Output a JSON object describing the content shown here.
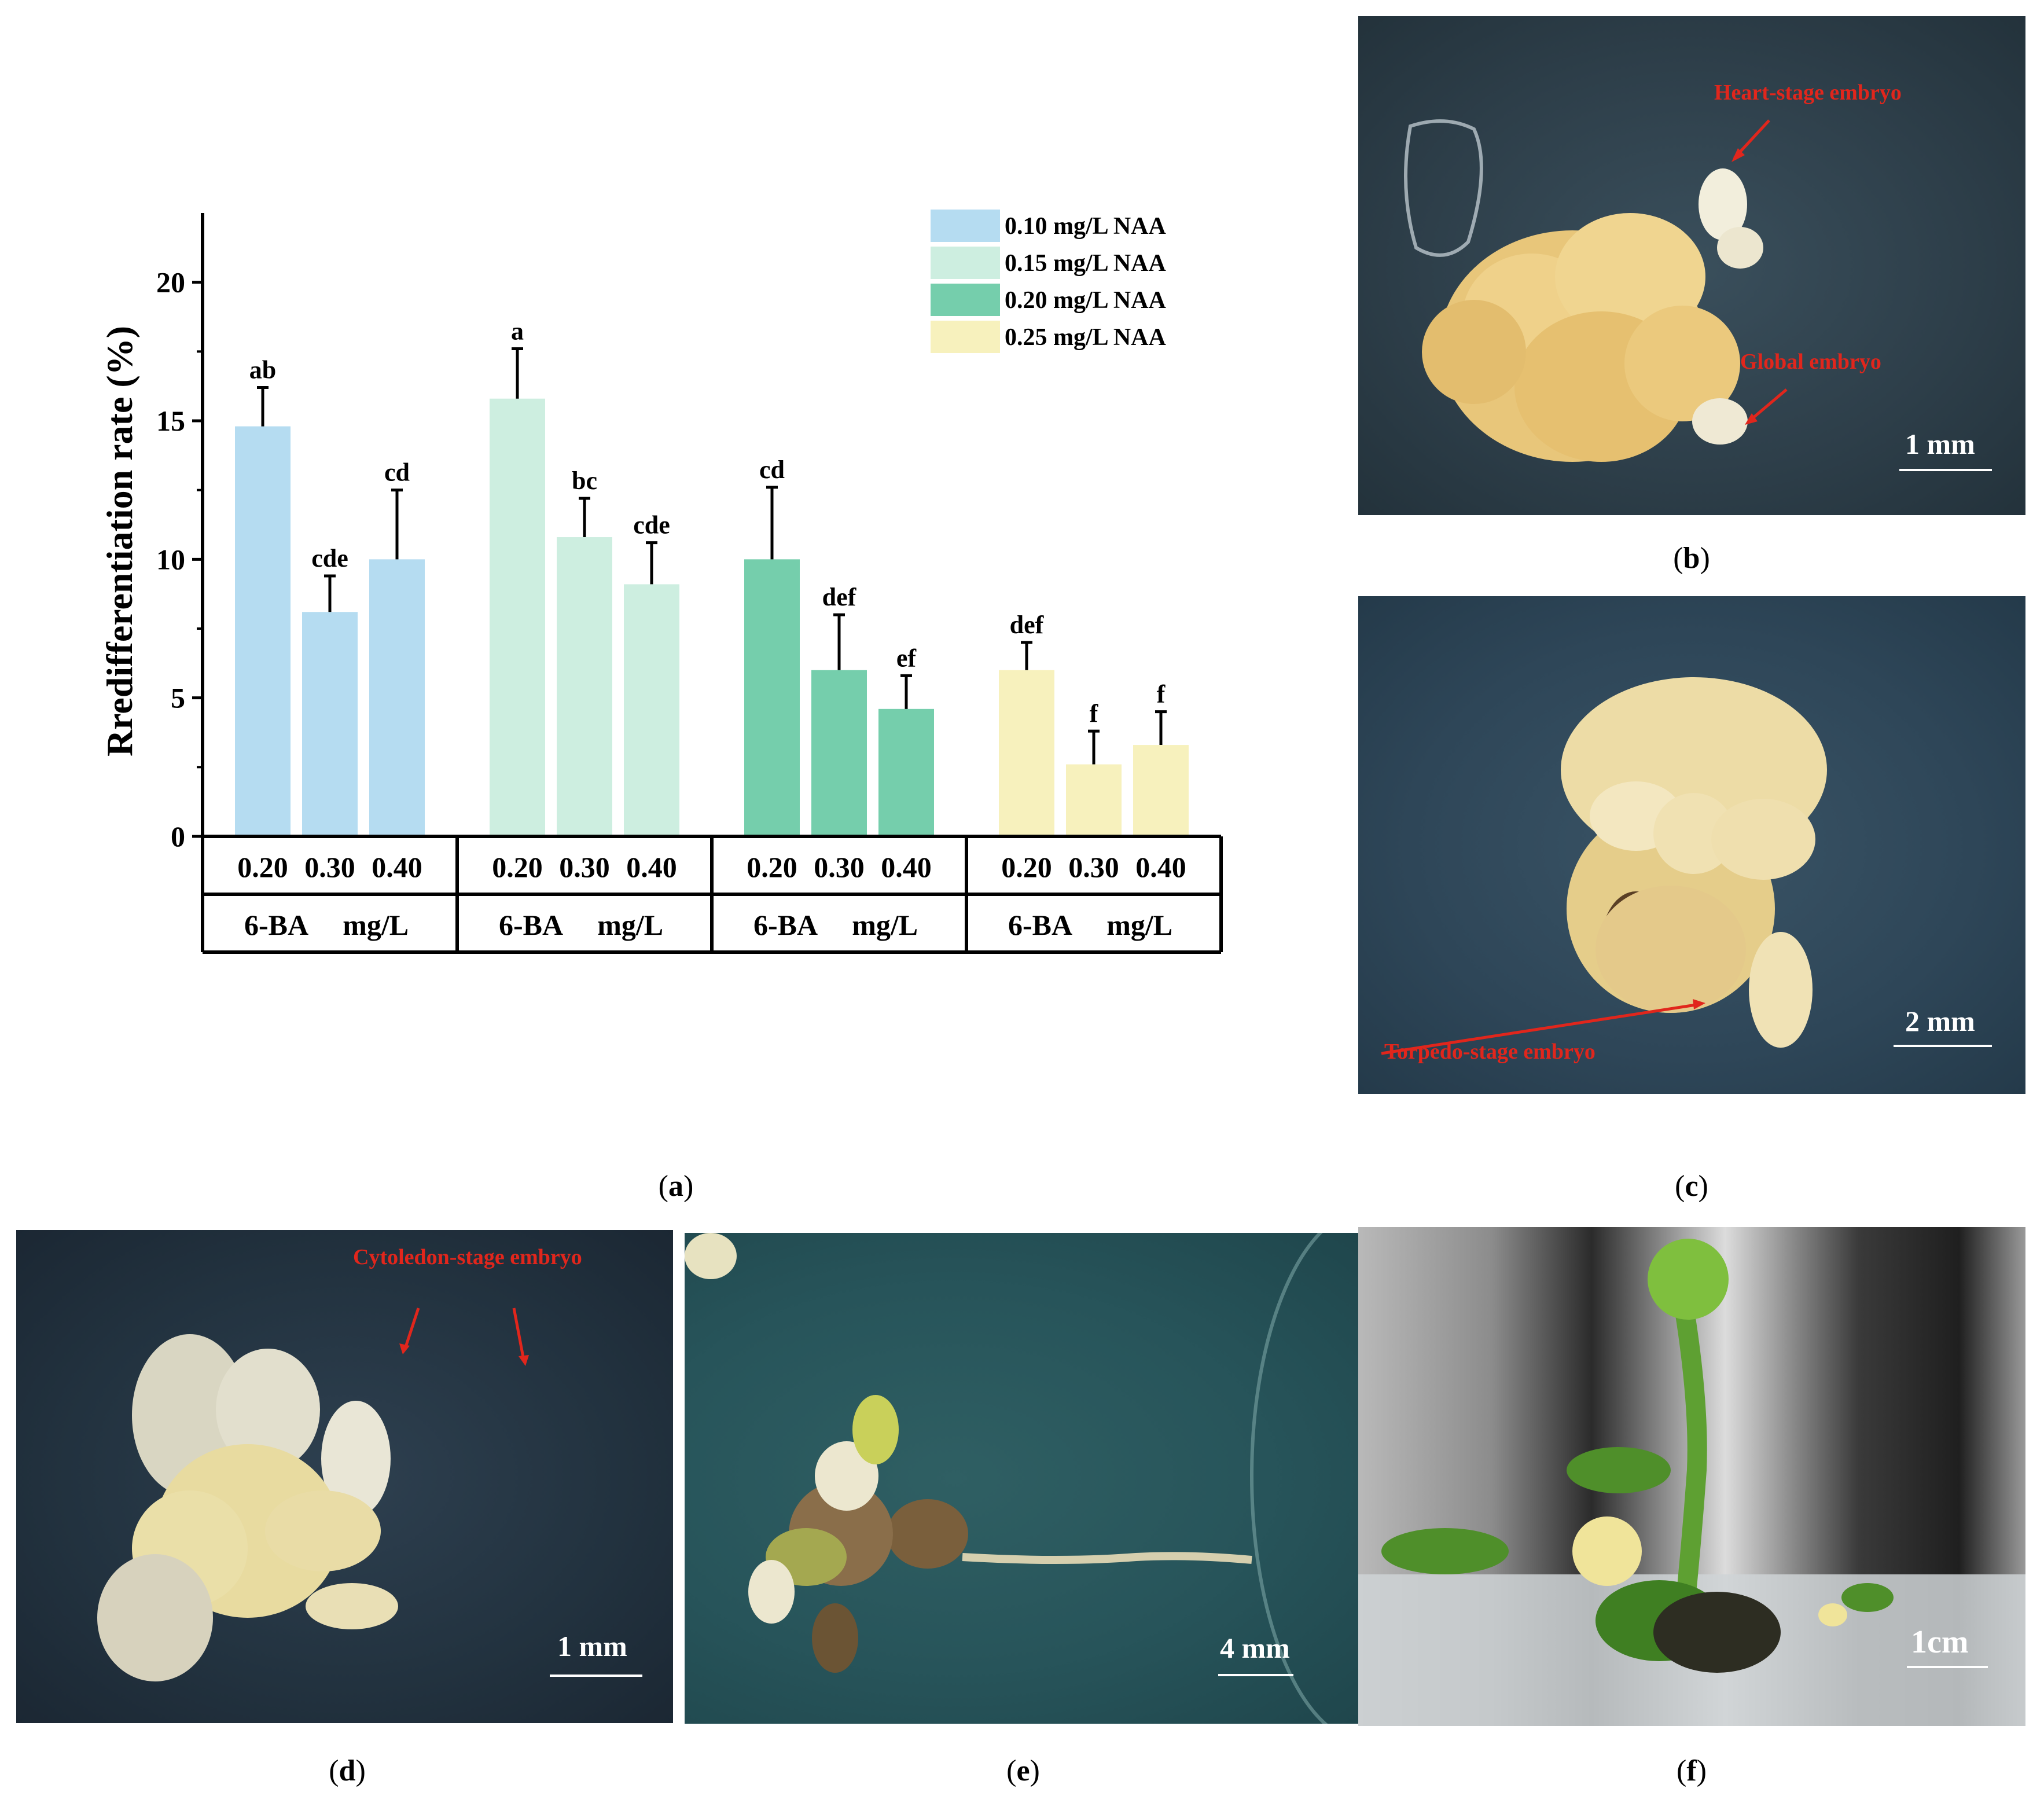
{
  "chart_data": {
    "type": "bar",
    "ylabel": "Rredifferentiation rate (%)",
    "ylim": [
      0,
      22.5
    ],
    "yticks": [
      0,
      5,
      10,
      15,
      20
    ],
    "legend_position": "top-right",
    "categories": [
      "0.20",
      "0.30",
      "0.40"
    ],
    "group_axis_label": [
      "6-BA",
      "mg/L"
    ],
    "series": [
      {
        "name": "0.10 mg/L NAA",
        "color": "#b5dcf1",
        "values": [
          14.8,
          8.1,
          10.0
        ],
        "errors": [
          1.4,
          1.3,
          2.5
        ],
        "letters": [
          "ab",
          "cde",
          "cd"
        ]
      },
      {
        "name": "0.15 mg/L NAA",
        "color": "#cdeee0",
        "values": [
          15.8,
          10.8,
          9.1
        ],
        "errors": [
          1.8,
          1.4,
          1.5
        ],
        "letters": [
          "a",
          "bc",
          "cde"
        ]
      },
      {
        "name": "0.20 mg/L NAA",
        "color": "#75ceac",
        "values": [
          10.0,
          6.0,
          4.6
        ],
        "errors": [
          2.6,
          2.0,
          1.2
        ],
        "letters": [
          "cd",
          "def",
          "ef"
        ]
      },
      {
        "name": "0.25 mg/L NAA",
        "color": "#f7f1bd",
        "values": [
          6.0,
          2.6,
          3.3
        ],
        "errors": [
          1.0,
          1.2,
          1.2
        ],
        "letters": [
          "def",
          "f",
          "f"
        ]
      }
    ]
  },
  "panels": {
    "a": {
      "label": "a"
    },
    "b": {
      "label": "b",
      "scale": "1 mm",
      "annotations": [
        "Heart-stage embryo",
        "Global embryo"
      ]
    },
    "c": {
      "label": "c",
      "scale": "2 mm",
      "annotations": [
        "Torpedo-stage embryo"
      ]
    },
    "d": {
      "label": "d",
      "scale": "1 mm",
      "annotations": [
        "Cytoledon-stage embryo"
      ]
    },
    "e": {
      "label": "e",
      "scale": "4 mm"
    },
    "f": {
      "label": "f",
      "scale": "1cm"
    }
  }
}
